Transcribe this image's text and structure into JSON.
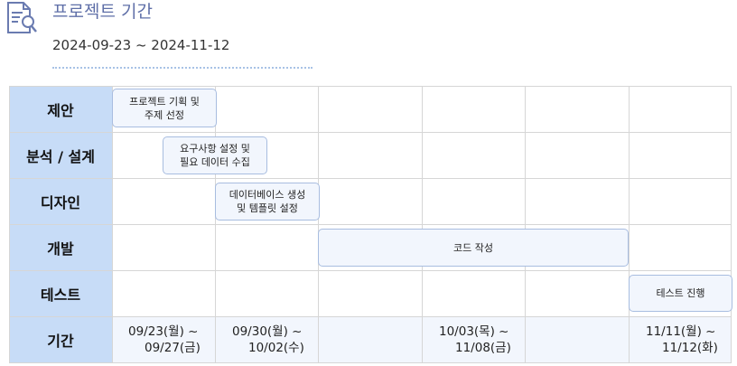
{
  "header": {
    "title": "프로젝트 기간",
    "period": "2024-09-23 ~ 2024-11-12",
    "icon": "document-search-icon"
  },
  "rows": [
    {
      "label": "제안"
    },
    {
      "label": "분석 / 설계"
    },
    {
      "label": "디자인"
    },
    {
      "label": "개발"
    },
    {
      "label": "테스트"
    },
    {
      "label": "기간"
    }
  ],
  "tasks": [
    {
      "text": "프로젝트 기획 및\n주제 선정",
      "row": 0
    },
    {
      "text": "요구사항 설정 및\n필요 데이터 수집",
      "row": 1
    },
    {
      "text": "데이터베이스 생성\n및 템플릿 설정",
      "row": 2
    },
    {
      "text": "코드 작성",
      "row": 3
    },
    {
      "text": "테스트 진행",
      "row": 4
    }
  ],
  "periods": [
    {
      "line1": "09/23(월) ~",
      "line2": "09/27(금)"
    },
    {
      "line1": "09/30(월) ~",
      "line2": "10/02(수)"
    },
    {
      "line1": "10/03(목) ~",
      "line2": "11/08(금)"
    },
    {
      "line1": "11/11(월) ~",
      "line2": "11/12(화)"
    }
  ],
  "colors": {
    "label_bg": "#c7dcf7",
    "task_bg": "#f2f6fd",
    "task_border": "#a8bde0",
    "title": "#5f6fa8"
  }
}
